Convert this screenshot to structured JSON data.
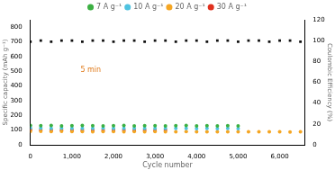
{
  "chart_data": {
    "type": "scatter",
    "x_label": "Cycle number",
    "y_label": "Specific capacity (mAh g⁻¹)",
    "y2_label": "Coulombic Efficiency (%)",
    "annotations": [
      "5 min"
    ],
    "xlim": [
      0,
      6600
    ],
    "xticks": [
      0,
      1000,
      2000,
      3000,
      4000,
      5000,
      6000
    ],
    "ylim": [
      0,
      850
    ],
    "yticks": [
      0,
      100,
      200,
      300,
      400,
      500,
      600,
      700,
      800
    ],
    "y2lim": [
      0,
      120
    ],
    "y2ticks": [
      0,
      20,
      40,
      60,
      80,
      100,
      120
    ],
    "grid": false,
    "legend": "top",
    "series": [
      {
        "name": "7 A g⁻¹",
        "color": "#3cb043",
        "marker": "circle",
        "x": [
          0,
          250,
          500,
          750,
          1000,
          1250,
          1500,
          1750,
          2000,
          2250,
          2500,
          2750,
          3000,
          3250,
          3500,
          3750,
          4000,
          4250,
          4500,
          4750,
          5000
        ],
        "values": [
          132,
          130,
          131,
          129,
          130,
          131,
          130,
          129,
          130,
          131,
          129,
          130,
          130,
          129,
          130,
          131,
          129,
          130,
          129,
          130,
          128
        ]
      },
      {
        "name": "10 A g⁻¹",
        "color": "#4fc3e0",
        "marker": "circle",
        "x": [
          0,
          250,
          500,
          750,
          1000,
          1250,
          1500,
          1750,
          2000,
          2250,
          2500,
          2750,
          3000,
          3250,
          3500,
          3750,
          4000,
          4250,
          4500,
          4750,
          5000
        ],
        "values": [
          115,
          113,
          112,
          113,
          112,
          111,
          112,
          113,
          112,
          111,
          112,
          111,
          112,
          111,
          112,
          111,
          110,
          111,
          110,
          111,
          110
        ]
      },
      {
        "name": "20 A g⁻¹",
        "color": "#f5a623",
        "marker": "circle",
        "x": [
          0,
          250,
          500,
          750,
          1000,
          1250,
          1500,
          1750,
          2000,
          2250,
          2500,
          2750,
          3000,
          3250,
          3500,
          3750,
          4000,
          4250,
          4500,
          4750,
          5000,
          5250,
          5500,
          5750,
          6000,
          6250,
          6500
        ],
        "values": [
          92,
          91,
          90,
          91,
          90,
          90,
          89,
          90,
          90,
          89,
          90,
          89,
          90,
          89,
          89,
          90,
          89,
          88,
          89,
          88,
          89,
          88,
          88,
          89,
          88,
          87,
          88
        ]
      },
      {
        "name": "30 A g⁻¹",
        "color": "#e0301e",
        "marker": "circle",
        "x": [
          0,
          250,
          500,
          750,
          1000,
          1250,
          1500,
          1750,
          2000,
          2250,
          2500,
          2750,
          3000,
          3250
        ],
        "values": [
          102,
          100,
          99,
          100,
          99,
          100,
          98,
          99,
          100,
          99,
          98,
          99,
          98,
          99
        ]
      },
      {
        "color": "#111111",
        "marker": "rect",
        "axis": "y2",
        "x": [
          0,
          250,
          500,
          750,
          1000,
          1250,
          1500,
          1750,
          2000,
          2250,
          2500,
          2750,
          3000,
          3250,
          3500,
          3750,
          4000,
          4250,
          4500,
          4750,
          5000,
          5250,
          5500,
          5750,
          6000,
          6250,
          6500
        ],
        "values": [
          99,
          100,
          99,
          100,
          100,
          99,
          100,
          100,
          99,
          100,
          100,
          99,
          100,
          100,
          99,
          100,
          100,
          99,
          100,
          100,
          99,
          100,
          100,
          99,
          100,
          100,
          99
        ]
      }
    ]
  }
}
